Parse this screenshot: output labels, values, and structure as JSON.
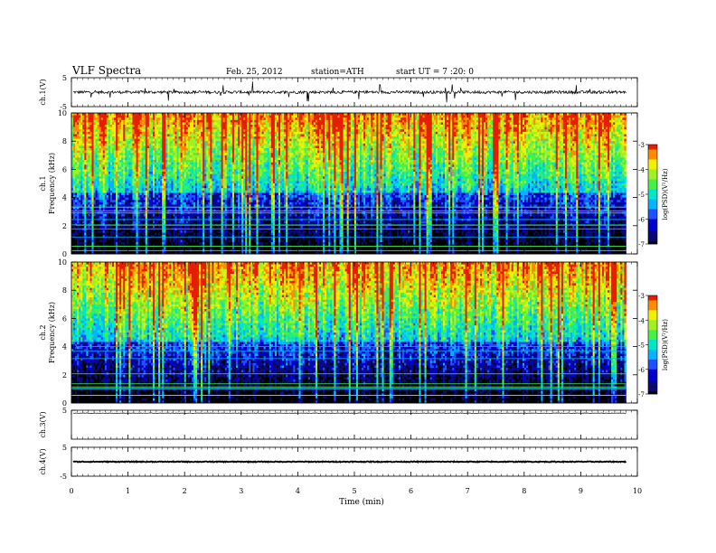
{
  "header": {
    "title": "VLF  Spectra",
    "date": "Feb. 25, 2012",
    "station": "station=ATH",
    "start": "start  UT  =   7  :20: 0"
  },
  "colors": {
    "colormap": [
      "#000000",
      "#0a0a6e",
      "#0000cc",
      "#1e50ff",
      "#00b4ff",
      "#00e6c8",
      "#46f046",
      "#a0f028",
      "#f0f000",
      "#ff8c00",
      "#e61e00",
      "#ffffff"
    ]
  },
  "chart_data": [
    {
      "id": "ch1-waveform",
      "type": "line",
      "ylabel": "ch.1(V)",
      "ylim": [
        -5,
        5
      ],
      "yticks": [
        "5",
        "-5"
      ],
      "xlim": [
        0,
        10
      ],
      "baseline": 0,
      "noise_amplitude": 1.0
    },
    {
      "id": "ch1-spectrogram",
      "type": "heatmap",
      "ylabel_top": "ch.1",
      "ylabel": "Frequency  (kHz)",
      "ylim": [
        0,
        10
      ],
      "yticks": [
        "0",
        "2",
        "4",
        "6",
        "8",
        "10"
      ],
      "xlim": [
        0,
        9.8
      ],
      "colorbar": {
        "label": "log(PSD)(V²/Hz)",
        "ticks": [
          "-3",
          "-4",
          "-5",
          "-6",
          "-7"
        ],
        "range": [
          -7,
          -3
        ]
      }
    },
    {
      "id": "ch2-spectrogram",
      "type": "heatmap",
      "ylabel_top": "ch.2",
      "ylabel": "Frequency  (kHz)",
      "ylim": [
        0,
        10
      ],
      "yticks": [
        "0",
        "2",
        "4",
        "6",
        "8",
        "10"
      ],
      "xlim": [
        0,
        9.8
      ],
      "colorbar": {
        "label": "log(PSD)(V²/Hz)",
        "ticks": [
          "-3",
          "-4",
          "-5",
          "-6",
          "-7"
        ],
        "range": [
          -7,
          -3
        ]
      }
    },
    {
      "id": "ch3-waveform",
      "type": "line",
      "ylabel": "ch.3(V)",
      "ylim": [
        -5,
        5
      ],
      "yticks": [
        "5"
      ],
      "xlim": [
        0,
        10
      ],
      "baseline": 4.0,
      "noise_amplitude": 0.15
    },
    {
      "id": "ch4-waveform",
      "type": "line",
      "ylabel": "ch.4(V)",
      "ylim": [
        -5,
        5
      ],
      "yticks": [
        "5",
        "-5"
      ],
      "xlim": [
        0,
        10
      ],
      "baseline": 0,
      "noise_amplitude": 0.3
    }
  ],
  "xaxis": {
    "label": "Time  (min)",
    "ticks": [
      "0",
      "1",
      "2",
      "3",
      "4",
      "5",
      "6",
      "7",
      "8",
      "9",
      "10"
    ],
    "range": [
      0,
      10
    ]
  }
}
